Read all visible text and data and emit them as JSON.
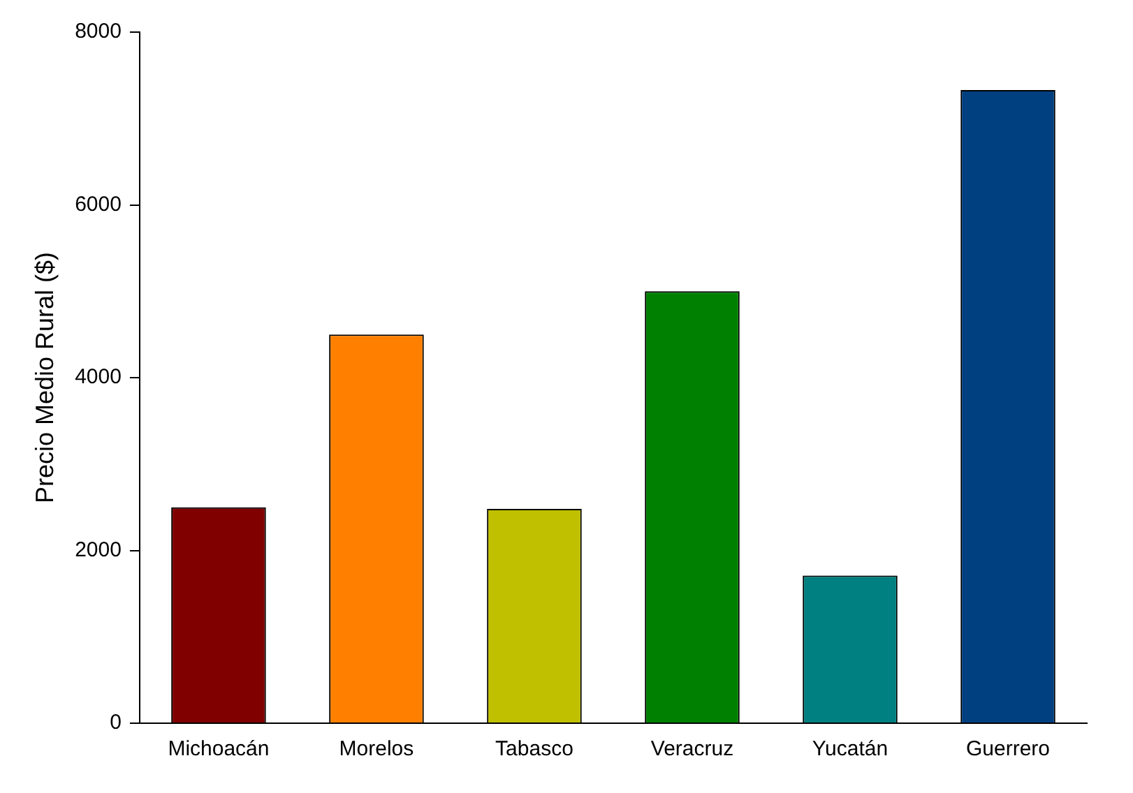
{
  "chart_data": {
    "type": "bar",
    "ylabel": "Precio Medio Rural ($)",
    "categories": [
      "Michoacán",
      "Morelos",
      "Tabasco",
      "Veracruz",
      "Yucatán",
      "Guerrero"
    ],
    "values": [
      2500,
      4500,
      2480,
      5000,
      1710,
      7330
    ],
    "colors": [
      "#800000",
      "#ff8000",
      "#c0c000",
      "#008000",
      "#008080",
      "#004080"
    ],
    "ylim": [
      0,
      8000
    ],
    "yticks": [
      0,
      2000,
      4000,
      6000,
      8000
    ],
    "grid": false,
    "legend": false
  }
}
